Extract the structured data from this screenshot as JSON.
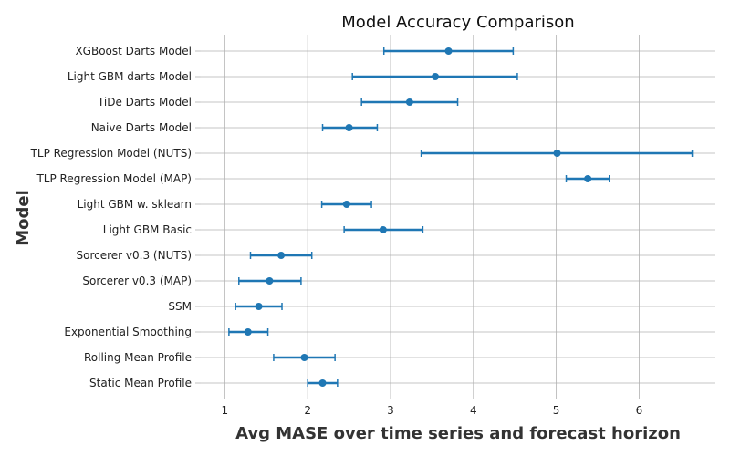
{
  "chart_data": {
    "type": "errorbar",
    "orientation": "horizontal",
    "title": "Model Accuracy Comparison",
    "xlabel": "Avg MASE over time series and forecast horizon",
    "ylabel": "Model",
    "xlim": [
      0.71,
      6.92
    ],
    "xticks": [
      1,
      2,
      3,
      4,
      5,
      6
    ],
    "grid": true,
    "color": "#1f77b4",
    "points": [
      {
        "label": "XGBoost Darts Model",
        "value": 3.7,
        "lower": 2.92,
        "upper": 4.48
      },
      {
        "label": "Light GBM darts Model",
        "value": 3.54,
        "lower": 2.54,
        "upper": 4.53
      },
      {
        "label": "TiDe Darts Model",
        "value": 3.23,
        "lower": 2.65,
        "upper": 3.81
      },
      {
        "label": "Naive Darts Model",
        "value": 2.5,
        "lower": 2.18,
        "upper": 2.84
      },
      {
        "label": "TLP Regression Model (NUTS)",
        "value": 5.01,
        "lower": 3.37,
        "upper": 6.64
      },
      {
        "label": "TLP Regression Model (MAP)",
        "value": 5.38,
        "lower": 5.12,
        "upper": 5.64
      },
      {
        "label": "Light GBM w. sklearn",
        "value": 2.47,
        "lower": 2.17,
        "upper": 2.77
      },
      {
        "label": "Light GBM Basic",
        "value": 2.91,
        "lower": 2.44,
        "upper": 3.39
      },
      {
        "label": "Sorcerer v0.3 (NUTS)",
        "value": 1.68,
        "lower": 1.31,
        "upper": 2.05
      },
      {
        "label": "Sorcerer v0.3 (MAP)",
        "value": 1.54,
        "lower": 1.17,
        "upper": 1.92
      },
      {
        "label": "SSM",
        "value": 1.41,
        "lower": 1.13,
        "upper": 1.69
      },
      {
        "label": "Exponential Smoothing",
        "value": 1.28,
        "lower": 1.05,
        "upper": 1.52
      },
      {
        "label": "Rolling Mean Profile",
        "value": 1.96,
        "lower": 1.59,
        "upper": 2.33
      },
      {
        "label": "Static Mean Profile",
        "value": 2.18,
        "lower": 2.0,
        "upper": 2.36
      }
    ]
  }
}
